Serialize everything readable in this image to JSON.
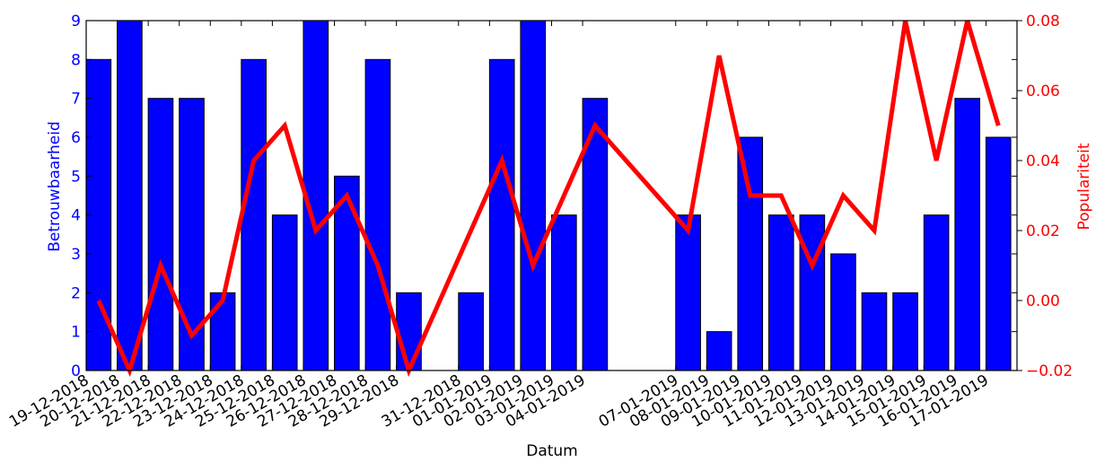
{
  "chart_data": {
    "type": "bar+line",
    "xlabel": "Datum",
    "ylabel_left": "Betrouwbaarheid",
    "ylabel_right": "Populariteit",
    "ylim_left": [
      0,
      9
    ],
    "ylim_right": [
      -0.02,
      0.08
    ],
    "yticks_left": [
      "0",
      "1",
      "2",
      "3",
      "4",
      "5",
      "6",
      "7",
      "8",
      "9"
    ],
    "yticks_right": [
      "−0.02",
      "0.00",
      "0.02",
      "0.04",
      "0.06",
      "0.08"
    ],
    "yticks_right_values": [
      -0.02,
      0.0,
      0.02,
      0.04,
      0.06,
      0.08
    ],
    "x_range": [
      "2018-12-19",
      "2019-01-18"
    ],
    "xtick_dates": [
      "2018-12-19",
      "2018-12-20",
      "2018-12-21",
      "2018-12-22",
      "2018-12-23",
      "2018-12-24",
      "2018-12-25",
      "2018-12-26",
      "2018-12-27",
      "2018-12-28",
      "2018-12-29",
      "2018-12-31",
      "2019-01-01",
      "2019-01-02",
      "2019-01-03",
      "2019-01-04",
      "2019-01-07",
      "2019-01-08",
      "2019-01-09",
      "2019-01-10",
      "2019-01-11",
      "2019-01-12",
      "2019-01-13",
      "2019-01-14",
      "2019-01-15",
      "2019-01-16",
      "2019-01-17"
    ],
    "xtick_labels": [
      "19-12-2018",
      "20-12-2018",
      "21-12-2018",
      "22-12-2018",
      "23-12-2018",
      "24-12-2018",
      "25-12-2018",
      "26-12-2018",
      "27-12-2018",
      "28-12-2018",
      "29-12-2018",
      "31-12-2018",
      "01-01-2019",
      "02-01-2019",
      "03-01-2019",
      "04-01-2019",
      "07-01-2019",
      "08-01-2019",
      "09-01-2019",
      "10-01-2019",
      "11-01-2019",
      "12-01-2019",
      "13-01-2019",
      "14-01-2019",
      "15-01-2019",
      "16-01-2019",
      "17-01-2019"
    ],
    "bars": {
      "color": "#0000ff",
      "edgecolor": "#000000",
      "points": [
        {
          "date": "2018-12-19",
          "value": 8
        },
        {
          "date": "2018-12-20",
          "value": 9
        },
        {
          "date": "2018-12-21",
          "value": 7
        },
        {
          "date": "2018-12-22",
          "value": 7
        },
        {
          "date": "2018-12-23",
          "value": 2
        },
        {
          "date": "2018-12-24",
          "value": 8
        },
        {
          "date": "2018-12-25",
          "value": 4
        },
        {
          "date": "2018-12-26",
          "value": 9
        },
        {
          "date": "2018-12-27",
          "value": 5
        },
        {
          "date": "2018-12-28",
          "value": 8
        },
        {
          "date": "2018-12-29",
          "value": 2
        },
        {
          "date": "2018-12-31",
          "value": 2
        },
        {
          "date": "2019-01-01",
          "value": 8
        },
        {
          "date": "2019-01-02",
          "value": 9
        },
        {
          "date": "2019-01-03",
          "value": 4
        },
        {
          "date": "2019-01-04",
          "value": 7
        },
        {
          "date": "2019-01-07",
          "value": 4
        },
        {
          "date": "2019-01-08",
          "value": 1
        },
        {
          "date": "2019-01-09",
          "value": 6
        },
        {
          "date": "2019-01-10",
          "value": 4
        },
        {
          "date": "2019-01-11",
          "value": 4
        },
        {
          "date": "2019-01-12",
          "value": 3
        },
        {
          "date": "2019-01-13",
          "value": 2
        },
        {
          "date": "2019-01-14",
          "value": 2
        },
        {
          "date": "2019-01-15",
          "value": 4
        },
        {
          "date": "2019-01-16",
          "value": 7
        },
        {
          "date": "2019-01-17",
          "value": 6
        }
      ]
    },
    "line": {
      "color": "#ff0000",
      "points": [
        {
          "date": "2018-12-19",
          "value": 0.0
        },
        {
          "date": "2018-12-20",
          "value": -0.02
        },
        {
          "date": "2018-12-21",
          "value": 0.01
        },
        {
          "date": "2018-12-22",
          "value": -0.01
        },
        {
          "date": "2018-12-23",
          "value": 0.0
        },
        {
          "date": "2018-12-24",
          "value": 0.04
        },
        {
          "date": "2018-12-25",
          "value": 0.05
        },
        {
          "date": "2018-12-26",
          "value": 0.02
        },
        {
          "date": "2018-12-27",
          "value": 0.03
        },
        {
          "date": "2018-12-28",
          "value": 0.01
        },
        {
          "date": "2018-12-29",
          "value": -0.02
        },
        {
          "date": "2018-12-31",
          "value": 0.02
        },
        {
          "date": "2019-01-01",
          "value": 0.04
        },
        {
          "date": "2019-01-02",
          "value": 0.01
        },
        {
          "date": "2019-01-03",
          "value": 0.03
        },
        {
          "date": "2019-01-04",
          "value": 0.05
        },
        {
          "date": "2019-01-07",
          "value": 0.02
        },
        {
          "date": "2019-01-08",
          "value": 0.07
        },
        {
          "date": "2019-01-09",
          "value": 0.03
        },
        {
          "date": "2019-01-10",
          "value": 0.03
        },
        {
          "date": "2019-01-11",
          "value": 0.01
        },
        {
          "date": "2019-01-12",
          "value": 0.03
        },
        {
          "date": "2019-01-13",
          "value": 0.02
        },
        {
          "date": "2019-01-14",
          "value": 0.08
        },
        {
          "date": "2019-01-15",
          "value": 0.04
        },
        {
          "date": "2019-01-16",
          "value": 0.08
        },
        {
          "date": "2019-01-17",
          "value": 0.05
        }
      ]
    },
    "grid": false,
    "legend": "none"
  }
}
